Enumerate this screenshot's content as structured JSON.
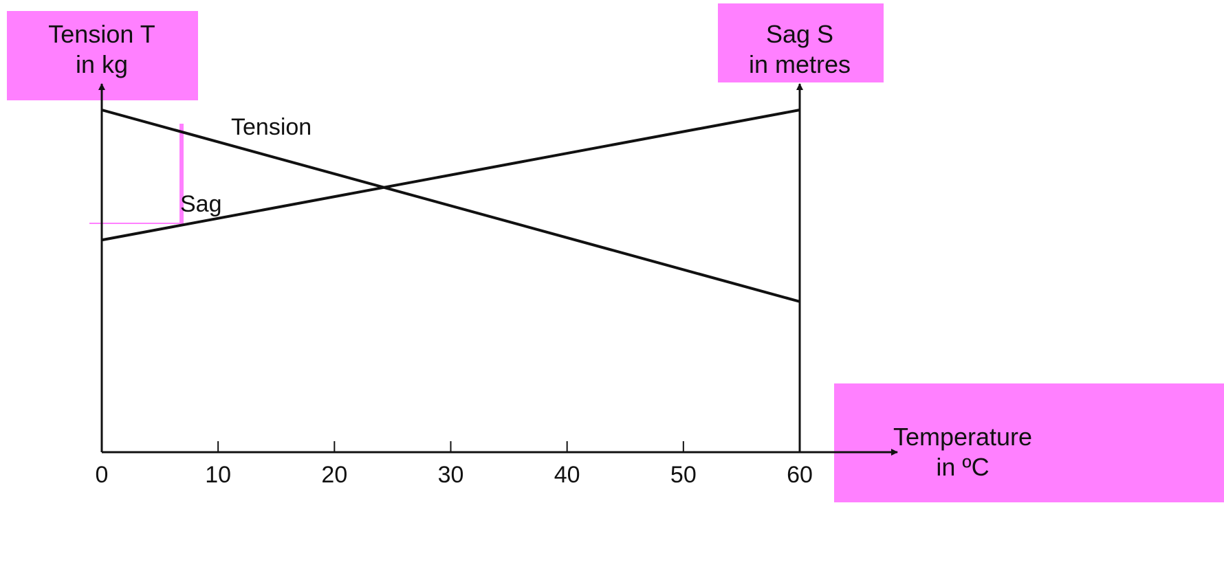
{
  "chart_data": {
    "type": "line",
    "left_axis_label": [
      "Tension T",
      "in kg"
    ],
    "right_axis_label": [
      "Sag S",
      "in metres"
    ],
    "x_axis_label": [
      "Temperature",
      "in ºC"
    ],
    "x_ticks": [
      0,
      10,
      20,
      30,
      40,
      50,
      60
    ],
    "xlim": [
      0,
      60
    ],
    "ylim": [
      0,
      100
    ],
    "grid": false,
    "series": [
      {
        "name": "Tension",
        "x": [
          0,
          60
        ],
        "y": [
          100,
          44
        ]
      },
      {
        "name": "Sag",
        "x": [
          0,
          60
        ],
        "y": [
          62,
          100
        ]
      }
    ],
    "colors": {
      "line": "#111111",
      "highlight": "#ff80ff"
    }
  }
}
